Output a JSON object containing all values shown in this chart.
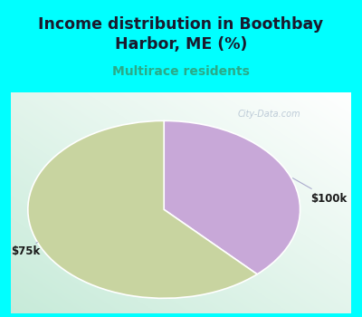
{
  "title": "Income distribution in Boothbay\nHarbor, ME (%)",
  "subtitle": "Multirace residents",
  "title_color": "#1a1a2e",
  "subtitle_color": "#2aaa88",
  "background_color": "#00ffff",
  "slices": [
    {
      "label": "$75k",
      "value": 62,
      "color": "#c8d4a0"
    },
    {
      "label": "$100k",
      "value": 38,
      "color": "#c8a8d8"
    }
  ],
  "watermark": "City-Data.com",
  "title_fontsize": 12.5,
  "subtitle_fontsize": 10
}
